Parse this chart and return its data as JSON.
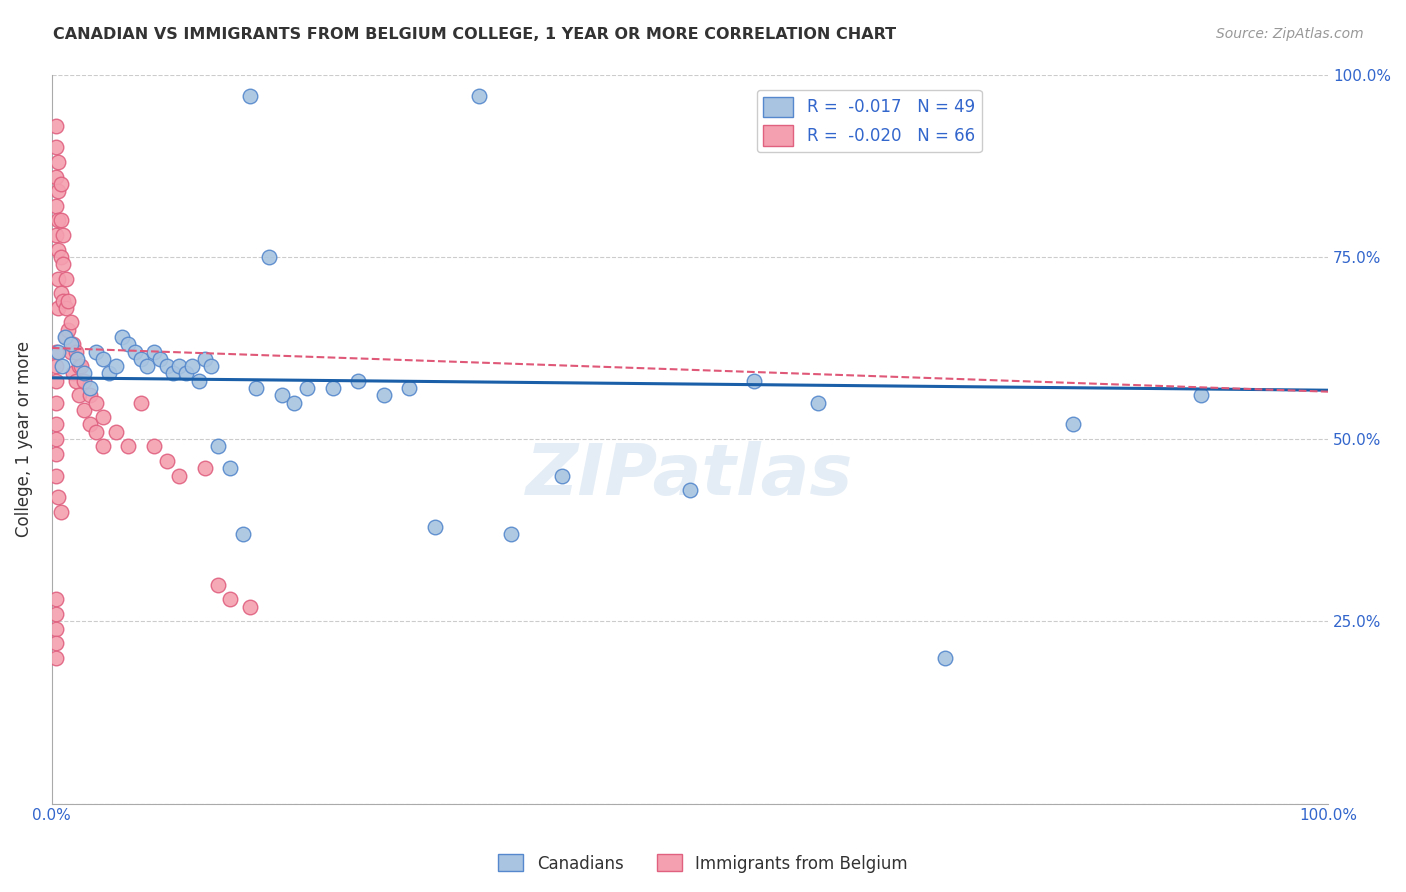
{
  "title": "CANADIAN VS IMMIGRANTS FROM BELGIUM COLLEGE, 1 YEAR OR MORE CORRELATION CHART",
  "source": "Source: ZipAtlas.com",
  "ylabel": "College, 1 year or more",
  "xlim": [
    0.0,
    1.0
  ],
  "ylim": [
    0.0,
    1.0
  ],
  "xticks": [
    0.0,
    0.1,
    0.2,
    0.3,
    0.4,
    0.5,
    0.6,
    0.7,
    0.8,
    0.9,
    1.0
  ],
  "yticks": [
    0.0,
    0.25,
    0.5,
    0.75,
    1.0
  ],
  "xticklabels": [
    "0.0%",
    "",
    "",
    "",
    "",
    "",
    "",
    "",
    "",
    "",
    "100.0%"
  ],
  "yticklabels": [
    "",
    "25.0%",
    "50.0%",
    "75.0%",
    "100.0%"
  ],
  "legend_r_blue": "-0.017",
  "legend_n_blue": "49",
  "legend_r_pink": "-0.020",
  "legend_n_pink": "66",
  "blue_color": "#a8c4e0",
  "pink_color": "#f4a0b0",
  "blue_edge_color": "#5588cc",
  "pink_edge_color": "#e06080",
  "blue_line_color": "#1a5fa8",
  "pink_line_color": "#e05878",
  "watermark": "ZIPatlas",
  "blue_scatter_x": [
    0.155,
    0.335,
    0.005,
    0.008,
    0.01,
    0.015,
    0.02,
    0.025,
    0.03,
    0.035,
    0.04,
    0.045,
    0.05,
    0.055,
    0.06,
    0.065,
    0.07,
    0.075,
    0.08,
    0.085,
    0.09,
    0.095,
    0.1,
    0.105,
    0.11,
    0.115,
    0.12,
    0.125,
    0.13,
    0.14,
    0.15,
    0.16,
    0.17,
    0.18,
    0.19,
    0.2,
    0.22,
    0.24,
    0.26,
    0.28,
    0.3,
    0.36,
    0.4,
    0.5,
    0.55,
    0.6,
    0.7,
    0.8,
    0.9
  ],
  "blue_scatter_y": [
    0.97,
    0.97,
    0.62,
    0.6,
    0.64,
    0.63,
    0.61,
    0.59,
    0.57,
    0.62,
    0.61,
    0.59,
    0.6,
    0.64,
    0.63,
    0.62,
    0.61,
    0.6,
    0.62,
    0.61,
    0.6,
    0.59,
    0.6,
    0.59,
    0.6,
    0.58,
    0.61,
    0.6,
    0.49,
    0.46,
    0.37,
    0.57,
    0.75,
    0.56,
    0.55,
    0.57,
    0.57,
    0.58,
    0.56,
    0.57,
    0.38,
    0.37,
    0.45,
    0.43,
    0.58,
    0.55,
    0.2,
    0.52,
    0.56
  ],
  "pink_scatter_x": [
    0.003,
    0.003,
    0.003,
    0.003,
    0.003,
    0.005,
    0.005,
    0.005,
    0.005,
    0.005,
    0.005,
    0.007,
    0.007,
    0.007,
    0.007,
    0.009,
    0.009,
    0.009,
    0.011,
    0.011,
    0.011,
    0.013,
    0.013,
    0.015,
    0.015,
    0.017,
    0.017,
    0.019,
    0.019,
    0.021,
    0.021,
    0.023,
    0.025,
    0.025,
    0.03,
    0.03,
    0.035,
    0.035,
    0.04,
    0.04,
    0.05,
    0.06,
    0.07,
    0.08,
    0.09,
    0.1,
    0.12,
    0.13,
    0.14,
    0.155,
    0.003,
    0.003,
    0.003,
    0.003,
    0.003,
    0.003,
    0.003,
    0.003,
    0.005,
    0.007,
    0.003,
    0.003,
    0.003,
    0.003,
    0.003
  ],
  "pink_scatter_y": [
    0.93,
    0.9,
    0.86,
    0.82,
    0.78,
    0.88,
    0.84,
    0.8,
    0.76,
    0.72,
    0.68,
    0.85,
    0.8,
    0.75,
    0.7,
    0.78,
    0.74,
    0.69,
    0.72,
    0.68,
    0.64,
    0.69,
    0.65,
    0.66,
    0.62,
    0.63,
    0.59,
    0.62,
    0.58,
    0.6,
    0.56,
    0.6,
    0.58,
    0.54,
    0.56,
    0.52,
    0.55,
    0.51,
    0.53,
    0.49,
    0.51,
    0.49,
    0.55,
    0.49,
    0.47,
    0.45,
    0.46,
    0.3,
    0.28,
    0.27,
    0.62,
    0.6,
    0.58,
    0.55,
    0.52,
    0.5,
    0.48,
    0.45,
    0.42,
    0.4,
    0.28,
    0.26,
    0.24,
    0.22,
    0.2
  ],
  "blue_trend_x": [
    0.0,
    1.0
  ],
  "blue_trend_y": [
    0.584,
    0.567
  ],
  "pink_trend_x": [
    0.0,
    1.0
  ],
  "pink_trend_y": [
    0.625,
    0.565
  ]
}
